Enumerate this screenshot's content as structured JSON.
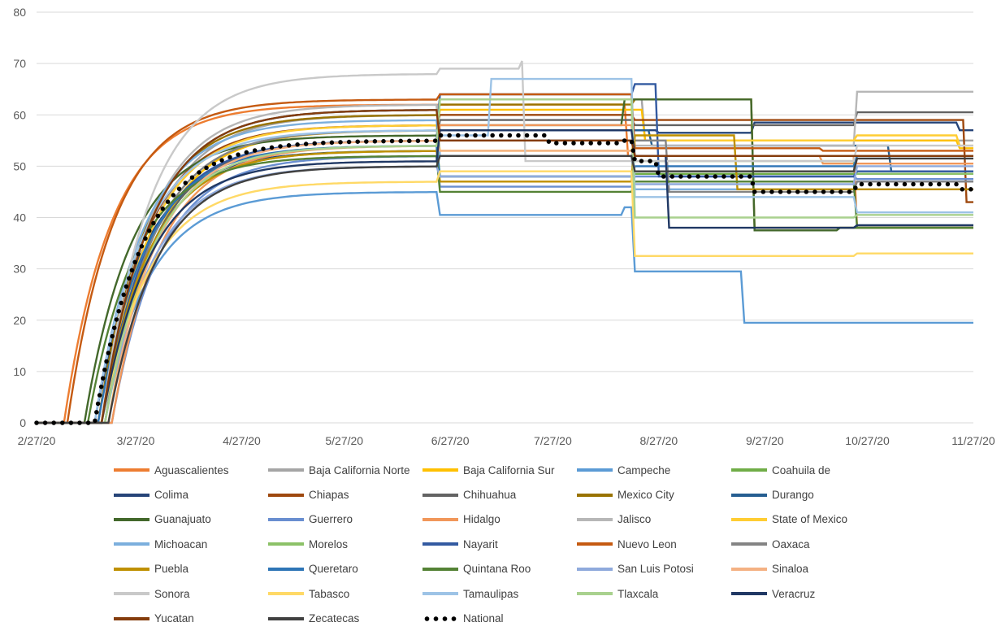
{
  "chart_data": {
    "type": "line",
    "title": "",
    "xlabel": "",
    "ylabel": "",
    "ylim": [
      0,
      80
    ],
    "y_ticks": [
      "0",
      "10",
      "20",
      "30",
      "40",
      "50",
      "60",
      "70",
      "80"
    ],
    "x_ticks": [
      "2/27/20",
      "3/27/20",
      "4/27/20",
      "5/27/20",
      "6/27/20",
      "7/27/20",
      "8/27/20",
      "9/27/20",
      "10/27/20",
      "11/27/20"
    ],
    "x_tick_days": [
      0,
      29,
      60,
      90,
      121,
      151,
      182,
      213,
      243,
      274
    ],
    "grid": "horizontal",
    "legend_position": "bottom",
    "series": [
      {
        "name": "Aguascalientes",
        "color": "#ED7D31",
        "start": 8,
        "plateau": 62,
        "breaks": [
          [
            173,
            52
          ],
          [
            240,
            38
          ]
        ]
      },
      {
        "name": "Baja California Norte",
        "color": "#A5A5A5",
        "start": 20,
        "plateau": 60,
        "breaks": [
          [
            118,
            63
          ],
          [
            178,
            55
          ]
        ]
      },
      {
        "name": "Baja California Sur",
        "color": "#FFC000",
        "start": 21,
        "plateau": 57,
        "breaks": [
          [
            118,
            61
          ],
          [
            178,
            55
          ],
          [
            270,
            53.5
          ]
        ]
      },
      {
        "name": "Campeche",
        "color": "#5B9BD5",
        "start": 19,
        "plateau": 45,
        "breaks": [
          [
            118,
            40.5
          ],
          [
            172,
            42
          ],
          [
            175,
            29.5
          ],
          [
            207,
            19.5
          ]
        ]
      },
      {
        "name": "Coahuila de",
        "color": "#70AD47",
        "start": 20,
        "plateau": 55,
        "breaks": [
          [
            118,
            48
          ],
          [
            175,
            48.5
          ]
        ]
      },
      {
        "name": "Colima",
        "color": "#264478",
        "start": 17,
        "plateau": 53,
        "breaks": [
          [
            118,
            57
          ],
          [
            182,
            56.5
          ],
          [
            210,
            58.5
          ],
          [
            270,
            57
          ]
        ]
      },
      {
        "name": "Chiapas",
        "color": "#9E480E",
        "start": 18,
        "plateau": 58,
        "breaks": [
          [
            118,
            60
          ],
          [
            175,
            59
          ],
          [
            272,
            43
          ]
        ]
      },
      {
        "name": "Chihuahua",
        "color": "#636363",
        "start": 20,
        "plateau": 55,
        "breaks": [
          [
            118,
            59
          ],
          [
            175,
            58
          ],
          [
            240,
            60.5
          ]
        ]
      },
      {
        "name": "Mexico City",
        "color": "#997300",
        "start": 18,
        "plateau": 60,
        "breaks": [
          [
            118,
            62
          ],
          [
            175,
            63
          ],
          [
            210,
            38
          ]
        ]
      },
      {
        "name": "Durango",
        "color": "#255E91",
        "start": 19,
        "plateau": 61,
        "breaks": [
          [
            118,
            57
          ],
          [
            180,
            54
          ],
          [
            250,
            49
          ]
        ]
      },
      {
        "name": "Guanajuato",
        "color": "#43682B",
        "start": 14,
        "plateau": 56,
        "breaks": [
          [
            118,
            58
          ],
          [
            172,
            63
          ],
          [
            210,
            37.5
          ],
          [
            235,
            38
          ]
        ]
      },
      {
        "name": "Guerrero",
        "color": "#698ED0",
        "start": 22,
        "plateau": 52,
        "breaks": [
          [
            118,
            46
          ],
          [
            175,
            48
          ],
          [
            240,
            47.5
          ]
        ]
      },
      {
        "name": "Hidalgo",
        "color": "#F1975A",
        "start": 22,
        "plateau": 54,
        "breaks": [
          [
            118,
            58
          ],
          [
            175,
            52
          ],
          [
            230,
            50.5
          ]
        ]
      },
      {
        "name": "Jalisco",
        "color": "#B7B7B7",
        "start": 19,
        "plateau": 62,
        "breaks": [
          [
            118,
            52
          ],
          [
            175,
            54
          ],
          [
            240,
            64.5
          ]
        ]
      },
      {
        "name": "State of Mexico",
        "color": "#FFCD33",
        "start": 19,
        "plateau": 58,
        "breaks": [
          [
            118,
            53
          ],
          [
            175,
            55
          ],
          [
            240,
            56
          ],
          [
            270,
            54
          ]
        ]
      },
      {
        "name": "Michoacan",
        "color": "#7CAFDD",
        "start": 17,
        "plateau": 59,
        "breaks": [
          [
            118,
            52
          ],
          [
            175,
            45.5
          ],
          [
            240,
            47
          ]
        ]
      },
      {
        "name": "Morelos",
        "color": "#8CC168",
        "start": 19,
        "plateau": 53,
        "breaks": [
          [
            118,
            63
          ],
          [
            175,
            51
          ],
          [
            240,
            48.5
          ]
        ]
      },
      {
        "name": "Nayarit",
        "color": "#335AA1",
        "start": 19,
        "plateau": 55,
        "breaks": [
          [
            118,
            64
          ],
          [
            175,
            66
          ],
          [
            182,
            48
          ],
          [
            240,
            49
          ]
        ]
      },
      {
        "name": "Nuevo Leon",
        "color": "#C55A11",
        "start": 9,
        "plateau": 63,
        "breaks": [
          [
            118,
            64
          ],
          [
            175,
            53.5
          ],
          [
            230,
            53
          ]
        ]
      },
      {
        "name": "Oaxaca",
        "color": "#848484",
        "start": 20,
        "plateau": 57,
        "breaks": [
          [
            118,
            55
          ],
          [
            185,
            45
          ],
          [
            240,
            47
          ]
        ]
      },
      {
        "name": "Puebla",
        "color": "#BF9000",
        "start": 19,
        "plateau": 53,
        "breaks": [
          [
            118,
            47
          ],
          [
            175,
            56
          ],
          [
            205,
            45.5
          ]
        ]
      },
      {
        "name": "Queretaro",
        "color": "#2E75B6",
        "start": 18,
        "plateau": 54,
        "breaks": [
          [
            118,
            48
          ],
          [
            175,
            50
          ],
          [
            240,
            52
          ]
        ]
      },
      {
        "name": "Quintana Roo",
        "color": "#548235",
        "start": 15,
        "plateau": 52,
        "breaks": [
          [
            118,
            45
          ],
          [
            175,
            47
          ],
          [
            240,
            38
          ]
        ]
      },
      {
        "name": "San Luis Potosi",
        "color": "#8FAADC",
        "start": 20,
        "plateau": 50,
        "breaks": [
          [
            118,
            48
          ],
          [
            175,
            46.5
          ],
          [
            240,
            50
          ]
        ]
      },
      {
        "name": "Sinaloa",
        "color": "#F4B183",
        "start": 21,
        "plateau": 55,
        "breaks": [
          [
            118,
            53
          ],
          [
            175,
            52
          ],
          [
            240,
            52
          ]
        ]
      },
      {
        "name": "Sonora",
        "color": "#C9C9C9",
        "start": 19,
        "plateau": 68,
        "breaks": [
          [
            118,
            69
          ],
          [
            142,
            70.5
          ],
          [
            143,
            51
          ],
          [
            240,
            54
          ]
        ]
      },
      {
        "name": "Tabasco",
        "color": "#FFD966",
        "start": 19,
        "plateau": 47,
        "breaks": [
          [
            118,
            49
          ],
          [
            175,
            32.5
          ],
          [
            240,
            33
          ]
        ]
      },
      {
        "name": "Tamaulipas",
        "color": "#9DC3E6",
        "start": 17,
        "plateau": 57,
        "breaks": [
          [
            118,
            56
          ],
          [
            133,
            67
          ],
          [
            175,
            44
          ],
          [
            240,
            41
          ]
        ]
      },
      {
        "name": "Tlaxcala",
        "color": "#A9D18E",
        "start": 20,
        "plateau": 54,
        "breaks": [
          [
            118,
            63
          ],
          [
            175,
            40
          ],
          [
            240,
            40.5
          ]
        ]
      },
      {
        "name": "Veracruz",
        "color": "#203864",
        "start": 19,
        "plateau": 51,
        "breaks": [
          [
            118,
            57
          ],
          [
            175,
            52
          ],
          [
            185,
            38
          ],
          [
            240,
            38.5
          ]
        ]
      },
      {
        "name": "Yucatan",
        "color": "#843C0C",
        "start": 19,
        "plateau": 61,
        "breaks": [
          [
            118,
            55
          ],
          [
            175,
            52
          ],
          [
            240,
            52
          ]
        ]
      },
      {
        "name": "Zecatecas",
        "color": "#404040",
        "start": 21,
        "plateau": 50,
        "breaks": [
          [
            118,
            52
          ],
          [
            175,
            49
          ],
          [
            240,
            51.5
          ]
        ]
      },
      {
        "name": "National",
        "color": "#000000",
        "dotted": true,
        "start": 17,
        "plateau": 55,
        "breaks": [
          [
            118,
            56
          ],
          [
            150,
            54.5
          ],
          [
            172,
            55
          ],
          [
            175,
            51
          ],
          [
            182,
            48
          ],
          [
            210,
            45
          ],
          [
            240,
            46.5
          ],
          [
            270,
            45.5
          ]
        ]
      }
    ]
  }
}
